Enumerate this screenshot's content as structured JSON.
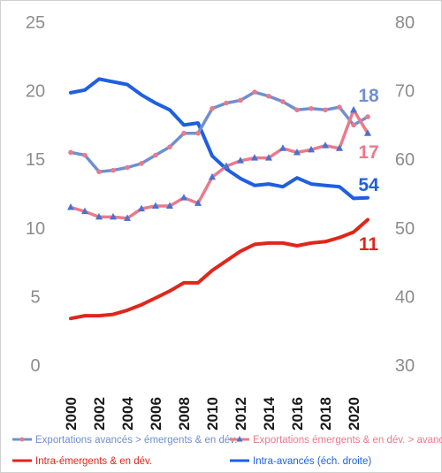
{
  "chart_data": {
    "type": "line",
    "title": "",
    "xlabel": "",
    "ylabel": "",
    "y2label": "",
    "ylim": [
      0,
      25
    ],
    "y2lim": [
      30,
      80
    ],
    "yticks": [
      "0",
      "5",
      "10",
      "15",
      "20",
      "25"
    ],
    "y2ticks": [
      "30",
      "40",
      "50",
      "60",
      "70",
      "80"
    ],
    "x": [
      2000,
      2001,
      2002,
      2003,
      2004,
      2005,
      2006,
      2007,
      2008,
      2009,
      2010,
      2011,
      2012,
      2013,
      2014,
      2015,
      2016,
      2017,
      2018,
      2019,
      2020,
      2021
    ],
    "xticks": [
      "2000",
      "2002",
      "2004",
      "2006",
      "2008",
      "2010",
      "2012",
      "2014",
      "2016",
      "2018",
      "2020"
    ],
    "grid": false,
    "legend_position": "bottom",
    "series": [
      {
        "name": "Exportations  avancés > émergents & en dév.",
        "axis": "left",
        "color": "#6f8fcf",
        "marker_color": "#ea7a8a",
        "marker": "circle",
        "values": [
          15.5,
          15.3,
          14.1,
          14.2,
          14.4,
          14.7,
          15.3,
          15.9,
          16.9,
          16.9,
          18.7,
          19.1,
          19.3,
          19.9,
          19.6,
          19.2,
          18.6,
          18.7,
          18.6,
          18.8,
          17.5,
          18.1
        ],
        "end_label": "18"
      },
      {
        "name": "Exportations  émergents & en dév. > avancés",
        "axis": "left",
        "color": "#ea7a8a",
        "marker_color": "#4a72d0",
        "marker": "triangle",
        "values": [
          11.5,
          11.2,
          10.8,
          10.8,
          10.7,
          11.4,
          11.6,
          11.6,
          12.2,
          11.8,
          13.7,
          14.5,
          14.9,
          15.1,
          15.1,
          15.8,
          15.5,
          15.7,
          16.0,
          15.8,
          18.6,
          16.9
        ],
        "end_label": "17"
      },
      {
        "name": "Intra-émergents & en dév.",
        "axis": "left",
        "color": "#e0261b",
        "values": [
          3.4,
          3.6,
          3.6,
          3.7,
          4.0,
          4.4,
          4.9,
          5.4,
          6.0,
          6.0,
          6.9,
          7.6,
          8.3,
          8.8,
          8.9,
          8.9,
          8.7,
          8.9,
          9.0,
          9.3,
          9.7,
          10.6
        ],
        "end_label": "11"
      },
      {
        "name": "Intra-avancés (éch. droite)",
        "axis": "right",
        "color": "#1f5fe0",
        "values": [
          69.7,
          70.1,
          71.7,
          71.3,
          70.9,
          69.4,
          68.2,
          67.2,
          65.0,
          65.3,
          60.5,
          58.6,
          57.2,
          56.2,
          56.4,
          56.0,
          57.3,
          56.4,
          56.2,
          56.0,
          54.3,
          54.4
        ],
        "end_label": "54"
      }
    ]
  }
}
